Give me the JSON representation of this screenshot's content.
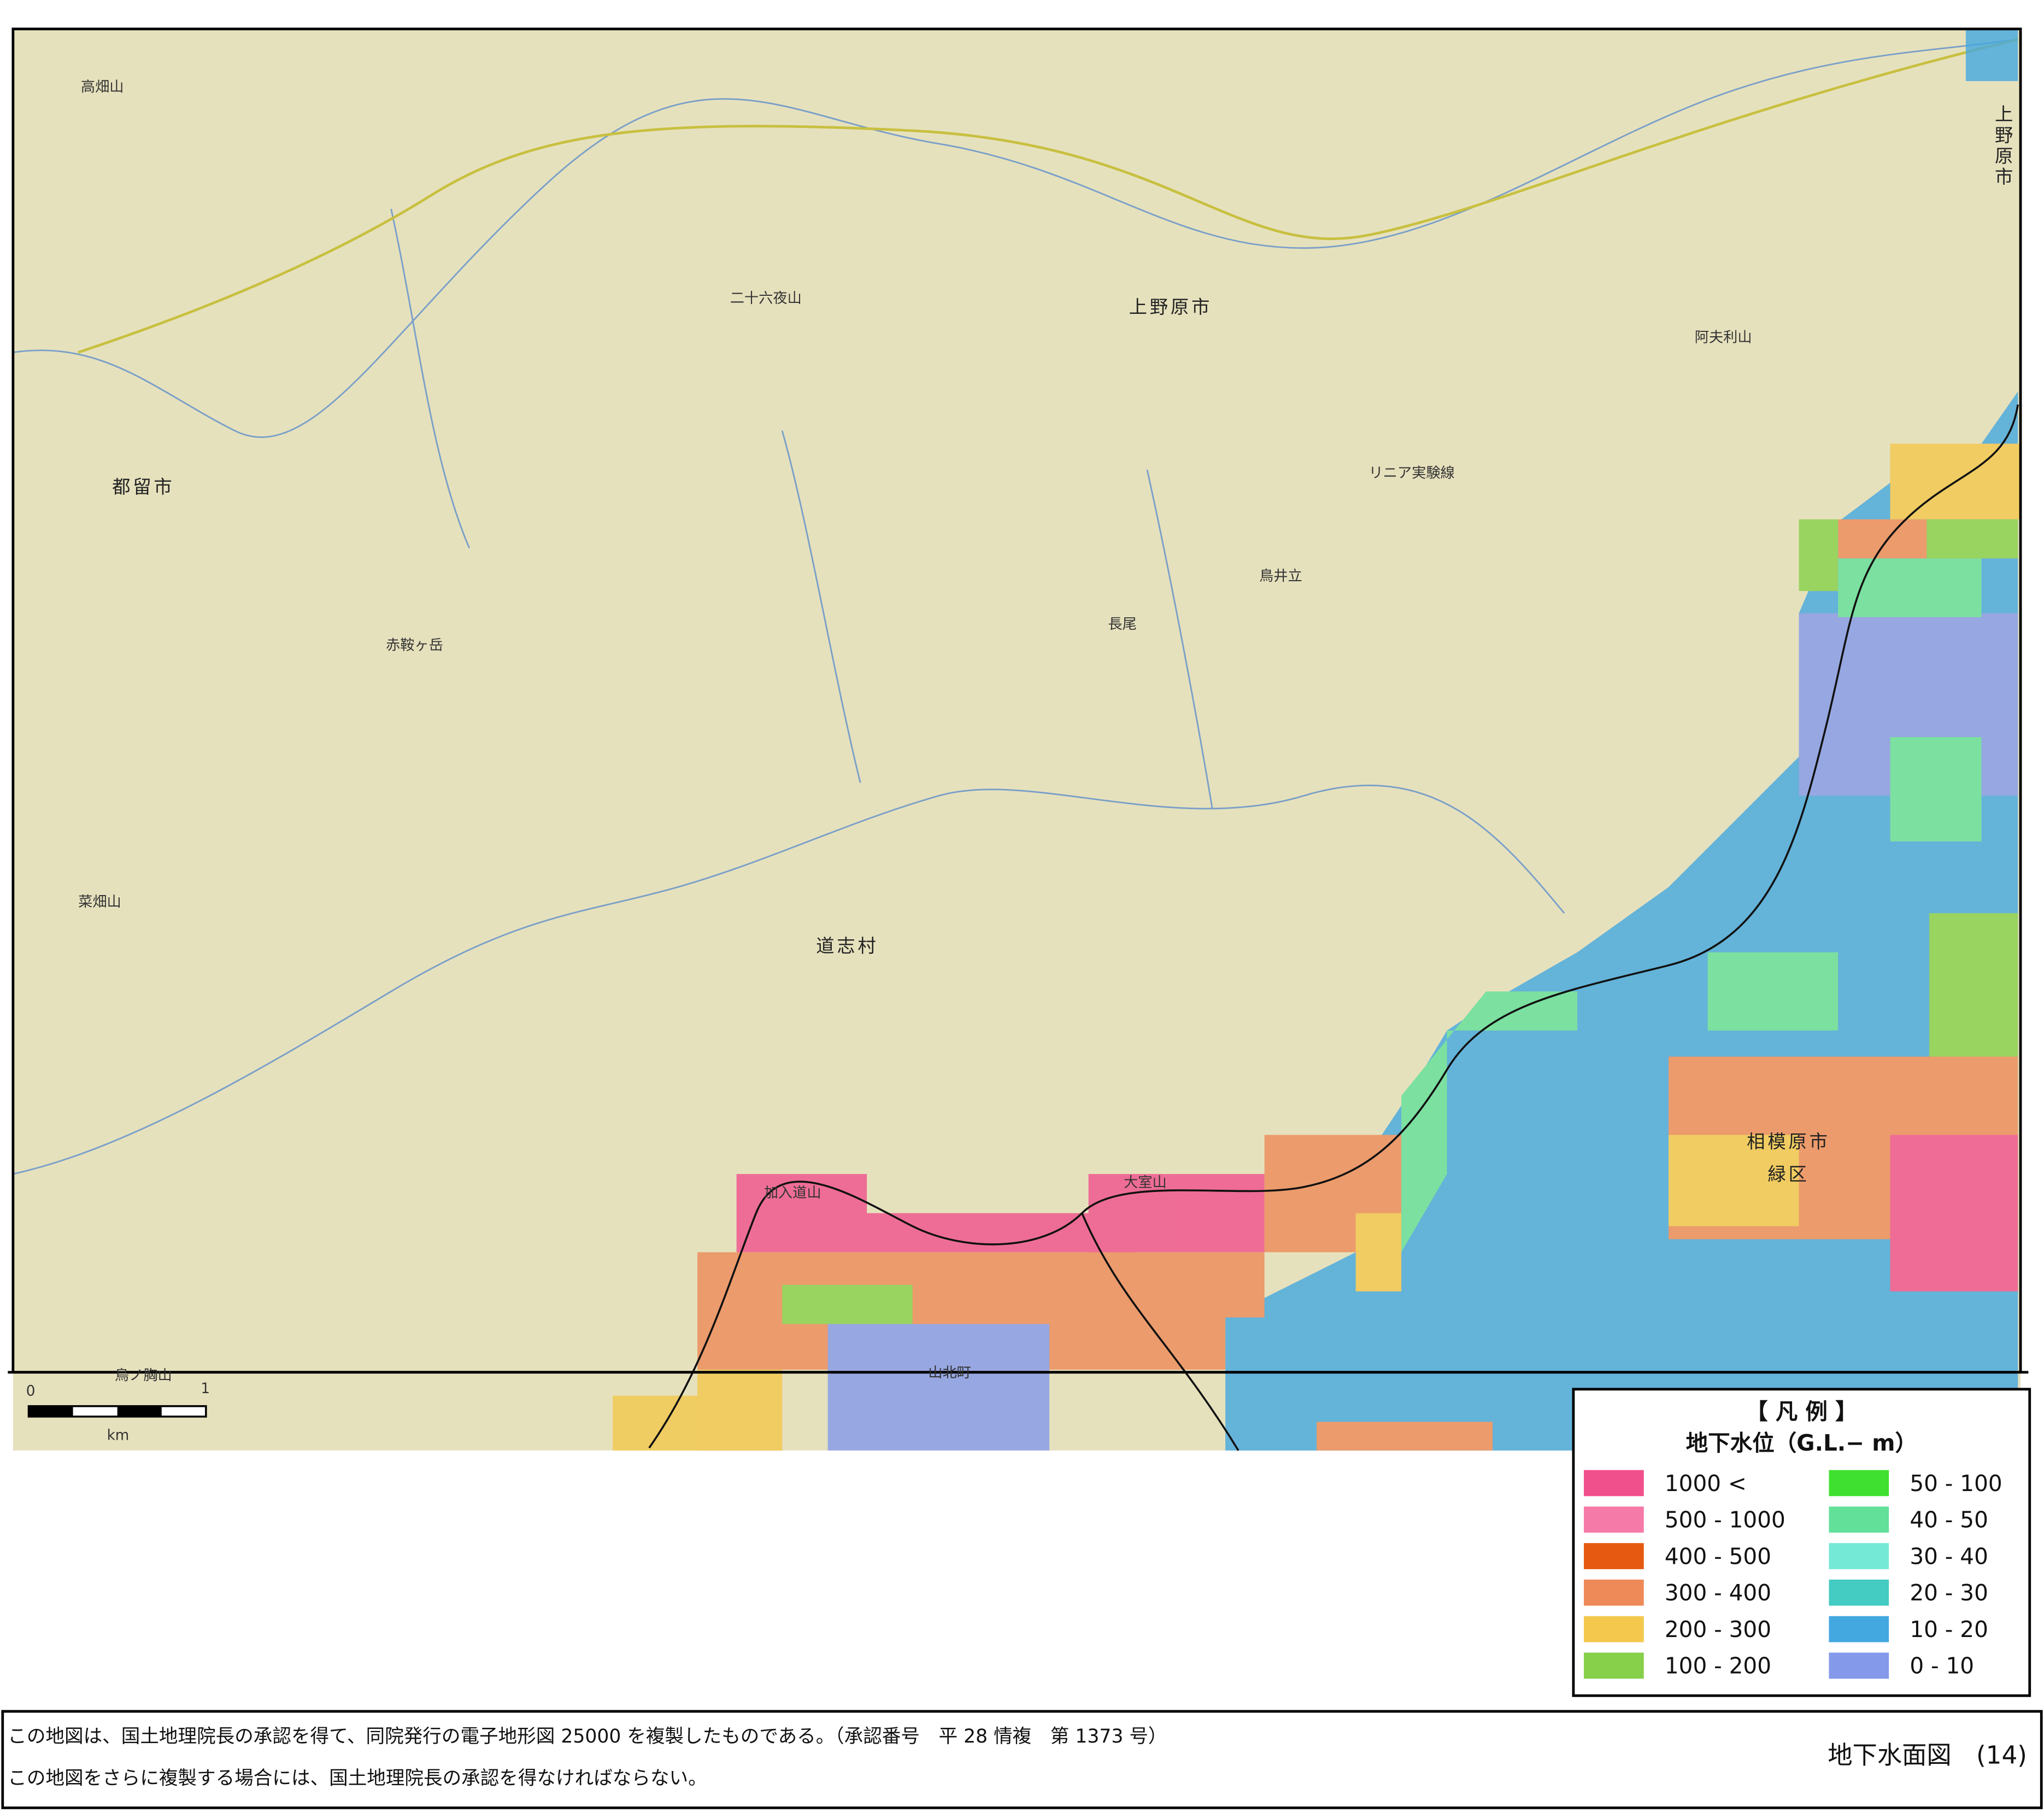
{
  "map": {
    "labels": [
      "上野原市",
      "上野原市",
      "都留市",
      "道志村",
      "相模原市",
      "緑区",
      "二十六夜山",
      "赤鞍ヶ岳",
      "加入道山",
      "大室山",
      "高畑山",
      "菜畑山",
      "阿夫利山",
      "鳥井立",
      "長尾",
      "山北町",
      "鳥ノ胸山",
      "リニア実験線"
    ],
    "scale": {
      "zero": "0",
      "one": "1",
      "unit": "km"
    }
  },
  "legend": {
    "title": "【 凡 例 】",
    "subtitle": "地下水位（G.L.− m）",
    "items": [
      {
        "label": "1000 <",
        "color": "#f0508c"
      },
      {
        "label": "500 - 1000",
        "color": "#f57aa8"
      },
      {
        "label": "400 - 500",
        "color": "#e55a10"
      },
      {
        "label": "300 - 400",
        "color": "#ee8a58"
      },
      {
        "label": "200 - 300",
        "color": "#f3c84c"
      },
      {
        "label": "100 - 200",
        "color": "#86d04a"
      },
      {
        "label": "50 - 100",
        "color": "#3fe030"
      },
      {
        "label": "40 - 50",
        "color": "#62e09a"
      },
      {
        "label": "30 - 40",
        "color": "#74ead6"
      },
      {
        "label": "20 - 30",
        "color": "#44cbc2"
      },
      {
        "label": "10 - 20",
        "color": "#44a8e0"
      },
      {
        "label": "0 - 10",
        "color": "#8499ea"
      }
    ]
  },
  "footer": {
    "line1": "この地図は、国土地理院長の承認を得て、同院発行の電子地形図 25000 を複製したものである。（承認番号　平 28 情複　第 1373 号）",
    "line2": "この地図をさらに複製する場合には、国土地理院長の承認を得なければならない。",
    "sheet": "地下水面図　(14)"
  }
}
